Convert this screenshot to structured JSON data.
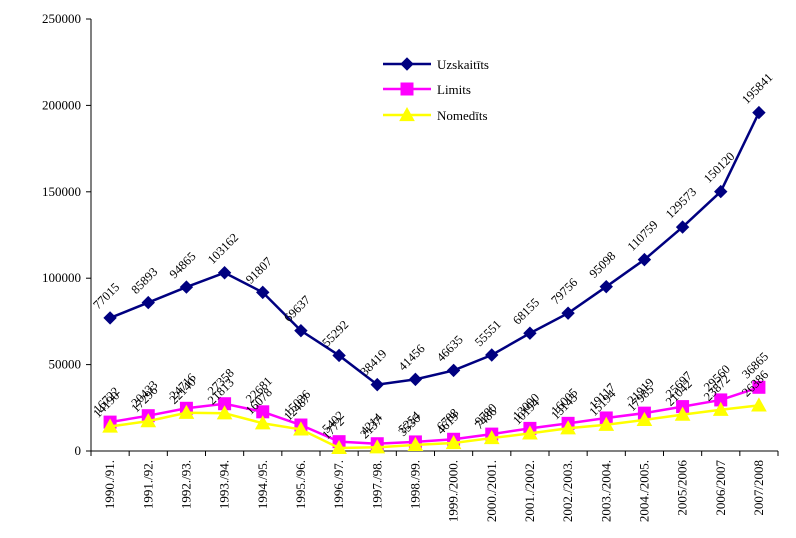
{
  "chart_data": {
    "type": "line",
    "title": "",
    "xlabel": "",
    "ylabel": "",
    "ylim": [
      0,
      250000
    ],
    "yticks": [
      0,
      50000,
      100000,
      150000,
      200000,
      250000
    ],
    "grid": false,
    "legend_position": "top-right",
    "categories": [
      "1990./91.",
      "1991./92.",
      "1992./93.",
      "1993./94.",
      "1994./95.",
      "1995./96.",
      "1996./97.",
      "1997./98.",
      "1998./99.",
      "1999./2000.",
      "2000./2001.",
      "2001./2002.",
      "2002./2003.",
      "2003./2004.",
      "2004./2005.",
      "2005/2006",
      "2006/2007",
      "2007/2008"
    ],
    "series": [
      {
        "name": "Uzskaitīts",
        "color": "#000080",
        "marker": "diamond",
        "values": [
          77015,
          85893,
          94865,
          103162,
          91807,
          69637,
          55292,
          38419,
          41456,
          46635,
          55551,
          68155,
          79756,
          95098,
          110759,
          129573,
          150120,
          195841
        ]
      },
      {
        "name": "Limits",
        "color": "#ff00ff",
        "marker": "square",
        "values": [
          16722,
          20433,
          24716,
          27358,
          22681,
          15036,
          5402,
          4214,
          5254,
          6788,
          9780,
          13090,
          16005,
          19117,
          21919,
          25697,
          29560,
          36865
        ]
      },
      {
        "name": "Nomedīts",
        "color": "#ffff00",
        "marker": "triangle",
        "values": [
          14190,
          17296,
          22140,
          21813,
          16078,
          12487,
          1772,
          2137,
          3536,
          4619,
          7486,
          10194,
          13143,
          15194,
          17985,
          21042,
          23872,
          26386
        ]
      }
    ]
  }
}
